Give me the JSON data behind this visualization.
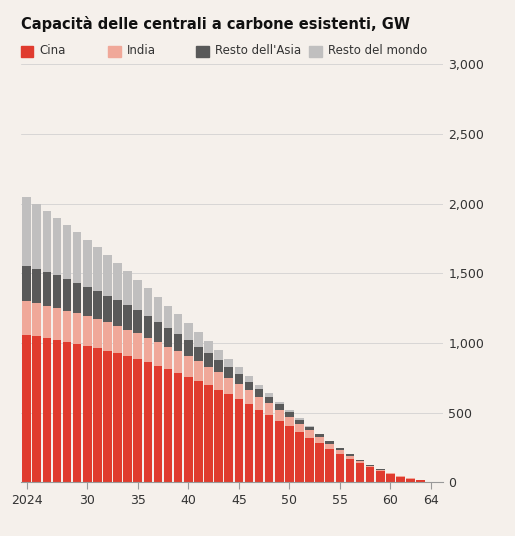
{
  "title": "Capacità delle centrali a carbone esistenti, GW",
  "legend_labels": [
    "Cina",
    "India",
    "Resto dell'Asia",
    "Resto del mondo"
  ],
  "colors": [
    "#e03b2e",
    "#f0a899",
    "#595959",
    "#c0bfbf"
  ],
  "background_color": "#f5f0eb",
  "years": [
    2024,
    2025,
    2026,
    2027,
    2028,
    2029,
    2030,
    2031,
    2032,
    2033,
    2034,
    2035,
    2036,
    2037,
    2038,
    2039,
    2040,
    2041,
    2042,
    2043,
    2044,
    2045,
    2046,
    2047,
    2048,
    2049,
    2050,
    2051,
    2052,
    2053,
    2054,
    2055,
    2056,
    2057,
    2058,
    2059,
    2060,
    2061,
    2062,
    2063,
    2064
  ],
  "china": [
    1060,
    1048,
    1036,
    1024,
    1010,
    996,
    980,
    964,
    946,
    927,
    907,
    885,
    862,
    838,
    812,
    785,
    757,
    728,
    697,
    665,
    631,
    596,
    560,
    522,
    483,
    443,
    402,
    361,
    320,
    280,
    241,
    203,
    168,
    136,
    107,
    82,
    60,
    42,
    27,
    14,
    5
  ],
  "india": [
    240,
    236,
    232,
    228,
    223,
    218,
    213,
    208,
    202,
    196,
    190,
    184,
    177,
    170,
    163,
    156,
    148,
    141,
    133,
    125,
    117,
    109,
    101,
    93,
    85,
    77,
    69,
    61,
    53,
    46,
    38,
    31,
    25,
    19,
    14,
    10,
    6,
    4,
    2,
    1,
    0
  ],
  "rest_asia": [
    255,
    248,
    241,
    233,
    226,
    218,
    210,
    201,
    193,
    184,
    174,
    165,
    155,
    145,
    135,
    125,
    115,
    106,
    96,
    87,
    78,
    70,
    62,
    54,
    47,
    41,
    35,
    29,
    24,
    19,
    15,
    12,
    9,
    6,
    4,
    3,
    2,
    1,
    1,
    0,
    0
  ],
  "rest_world": [
    490,
    464,
    439,
    414,
    389,
    364,
    339,
    315,
    291,
    267,
    244,
    221,
    199,
    178,
    158,
    139,
    121,
    104,
    89,
    74,
    61,
    50,
    40,
    32,
    25,
    18,
    13,
    9,
    6,
    4,
    2,
    1,
    1,
    0,
    0,
    0,
    0,
    0,
    0,
    0,
    0
  ],
  "ylim": [
    0,
    3000
  ],
  "yticks": [
    0,
    500,
    1000,
    1500,
    2000,
    2500,
    3000
  ],
  "xtick_labels": [
    "2024",
    "30",
    "35",
    "40",
    "45",
    "50",
    "55",
    "60",
    "64"
  ],
  "xtick_positions": [
    2024,
    2030,
    2035,
    2040,
    2045,
    2050,
    2055,
    2060,
    2064
  ]
}
